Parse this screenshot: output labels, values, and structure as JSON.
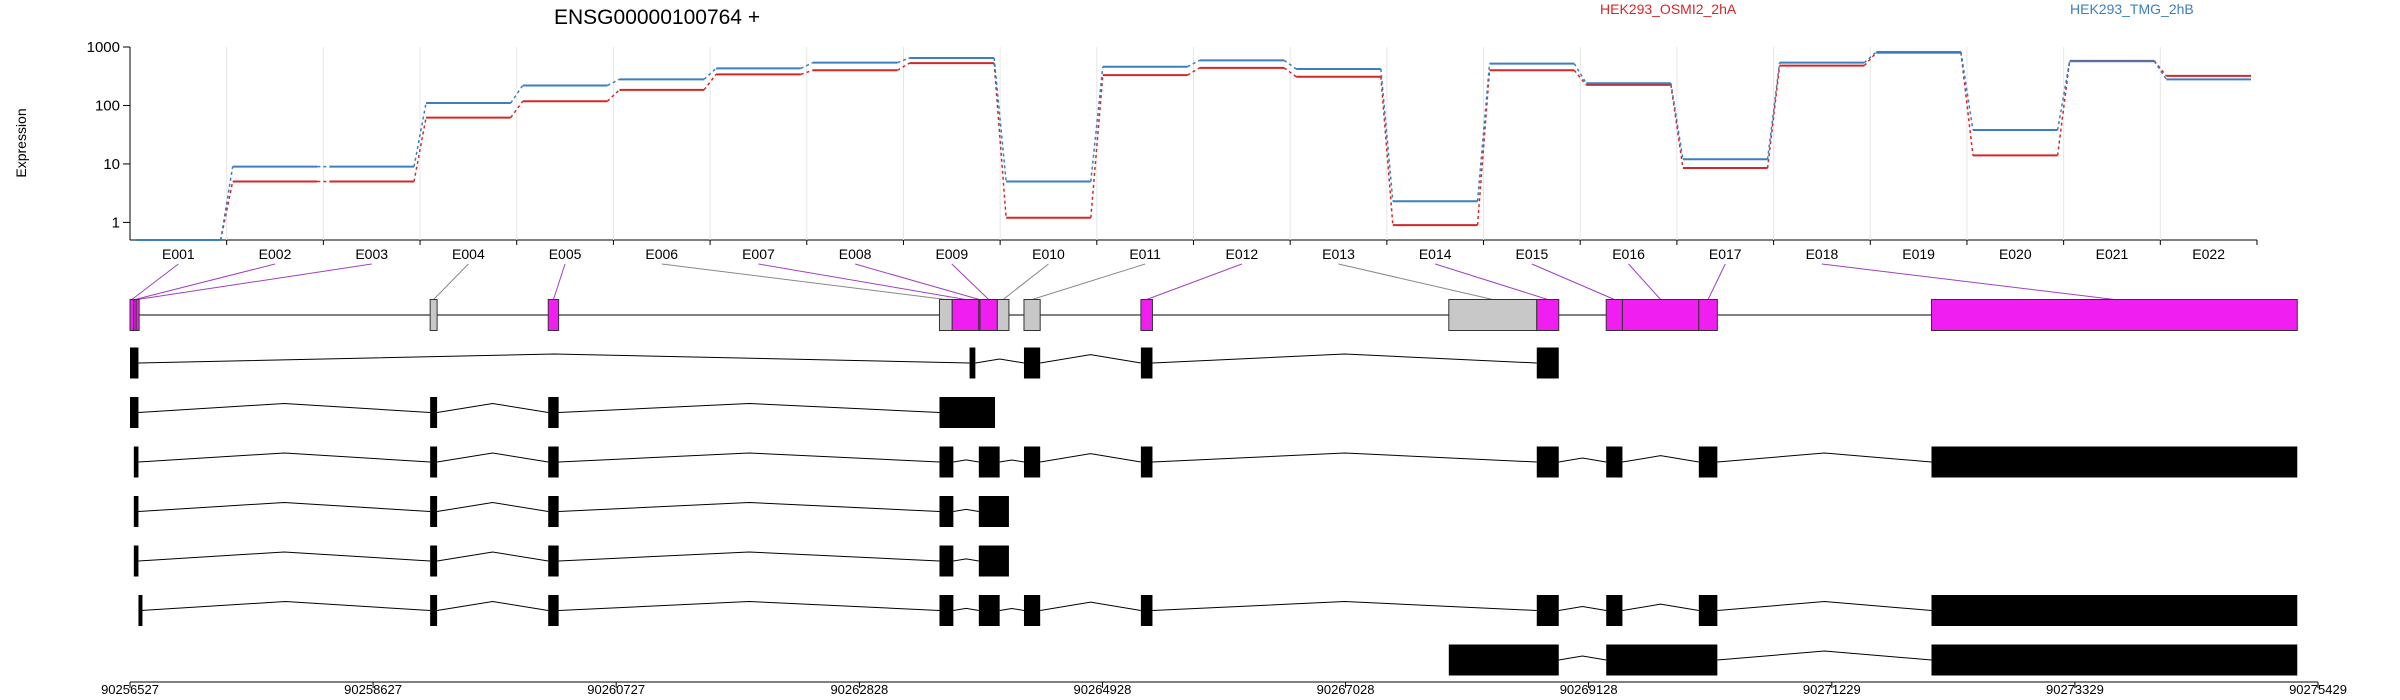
{
  "chart_data": {
    "type": "line",
    "title": "ENSG00000100764 +",
    "ylabel": "Expression",
    "yscale": "log",
    "ylim": [
      0.5,
      1000
    ],
    "yticks": [
      1,
      10,
      100,
      1000
    ],
    "categories": [
      "E001",
      "E002",
      "E003",
      "E004",
      "E005",
      "E006",
      "E007",
      "E008",
      "E009",
      "E010",
      "E011",
      "E012",
      "E013",
      "E014",
      "E015",
      "E016",
      "E017",
      "E018",
      "E019",
      "E020",
      "E021",
      "E022"
    ],
    "series": [
      {
        "name": "HEK293_OSMI2_2hA",
        "color": "#d62728",
        "values": [
          0.5,
          5,
          5,
          62,
          118,
          185,
          340,
          400,
          530,
          1.2,
          330,
          440,
          310,
          0.9,
          400,
          225,
          8.5,
          480,
          800,
          14,
          580,
          320
        ]
      },
      {
        "name": "HEK293_TMG_2hB",
        "color": "#3a7fc0",
        "values": [
          0.5,
          9,
          9,
          110,
          220,
          280,
          430,
          540,
          650,
          5,
          460,
          590,
          420,
          2.3,
          520,
          240,
          12,
          540,
          820,
          38,
          570,
          280
        ]
      }
    ],
    "genome_axis": {
      "range": [
        90256527,
        90275429
      ],
      "ticks": [
        "90256527",
        "90258627",
        "90260727",
        "90262828",
        "90264928",
        "90267028",
        "90269128",
        "90271229",
        "90273329",
        "90275429"
      ]
    },
    "exon_bins": [
      [
        90256527,
        90256560,
        1
      ],
      [
        90256560,
        90256580,
        1
      ],
      [
        90256580,
        90256600,
        1
      ],
      [
        90259120,
        90259180,
        0
      ],
      [
        90260140,
        90260230,
        1
      ],
      [
        90263520,
        90263630,
        0
      ],
      [
        90263630,
        90263860,
        1
      ],
      [
        90263860,
        90263870,
        1
      ],
      [
        90263870,
        90264020,
        1
      ],
      [
        90264020,
        90264120,
        0
      ],
      [
        90264250,
        90264390,
        0
      ],
      [
        90265260,
        90265360,
        1
      ],
      [
        90267920,
        90268680,
        0
      ],
      [
        90268680,
        90268870,
        1
      ],
      [
        90269280,
        90269420,
        1
      ],
      [
        90269420,
        90270080,
        1
      ],
      [
        90270080,
        90270240,
        1
      ],
      [
        90272090,
        90275250,
        1
      ]
    ],
    "transcripts": [
      [
        [
          90256527,
          90256600
        ],
        [
          90263780,
          90263830
        ],
        [
          90264250,
          90264390
        ],
        [
          90265260,
          90265360
        ],
        [
          90268680,
          90268870
        ]
      ],
      [
        [
          90256527,
          90256600
        ],
        [
          90259120,
          90259180
        ],
        [
          90260140,
          90260230
        ],
        [
          90263520,
          90264000
        ]
      ],
      [
        [
          90256560,
          90256600
        ],
        [
          90259120,
          90259180
        ],
        [
          90260140,
          90260230
        ],
        [
          90263520,
          90263640
        ],
        [
          90263860,
          90264040
        ],
        [
          90264250,
          90264390
        ],
        [
          90265260,
          90265360
        ],
        [
          90268680,
          90268870
        ],
        [
          90269280,
          90269420
        ],
        [
          90270080,
          90270240
        ],
        [
          90272090,
          90275250
        ]
      ],
      [
        [
          90256560,
          90256600
        ],
        [
          90259120,
          90259180
        ],
        [
          90260140,
          90260230
        ],
        [
          90263520,
          90263640
        ],
        [
          90263860,
          90264120
        ]
      ],
      [
        [
          90256560,
          90256600
        ],
        [
          90259120,
          90259180
        ],
        [
          90260140,
          90260230
        ],
        [
          90263520,
          90263640
        ],
        [
          90263860,
          90264120
        ]
      ],
      [
        [
          90256600,
          90256620
        ],
        [
          90259120,
          90259180
        ],
        [
          90260140,
          90260230
        ],
        [
          90263520,
          90263640
        ],
        [
          90263860,
          90264040
        ],
        [
          90264250,
          90264390
        ],
        [
          90265260,
          90265360
        ],
        [
          90268680,
          90268870
        ],
        [
          90269280,
          90269420
        ],
        [
          90270080,
          90270240
        ],
        [
          90272090,
          90275250
        ]
      ],
      [
        [
          90267920,
          90268870
        ],
        [
          90269280,
          90270240
        ],
        [
          90272090,
          90275250
        ]
      ]
    ],
    "colors": {
      "highlight_exon": "#f01ef0",
      "plain_exon": "#c8c8c8",
      "connector": "#a040c0",
      "transcript": "#000000"
    }
  }
}
